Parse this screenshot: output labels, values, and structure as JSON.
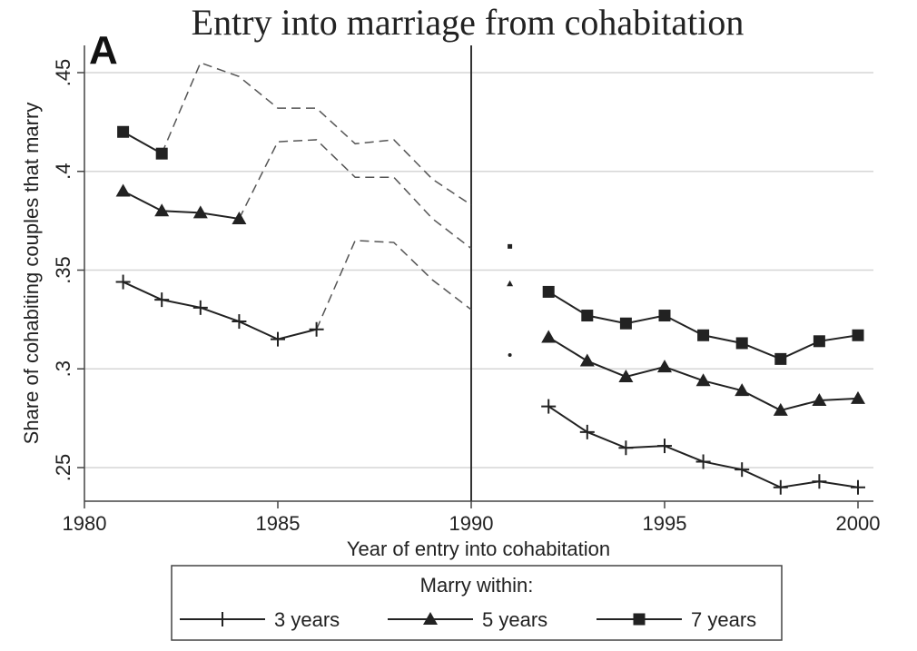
{
  "chart_data": {
    "type": "line",
    "title": "Entry into marriage from cohabitation",
    "panel_label": "A",
    "xlabel": "Year of entry into cohabitation",
    "ylabel": "Share of cohabiting couples that marry",
    "xlim": [
      1980,
      2000
    ],
    "ylim": [
      0.25,
      0.45
    ],
    "x_ticks": [
      1980,
      1985,
      1990,
      1995,
      2000
    ],
    "x_tick_labels": [
      "1980",
      "1985",
      "1990",
      "1995",
      "2000"
    ],
    "y_ticks": [
      0.25,
      0.3,
      0.35,
      0.4,
      0.45
    ],
    "y_tick_labels": [
      ".25",
      ".3",
      ".35",
      ".4",
      ".45"
    ],
    "grid": "horizontal",
    "vertical_line_at": 1990,
    "legend": {
      "title": "Marry within:",
      "placement": "bottom",
      "entries": [
        "3 years",
        "5 years",
        "7 years"
      ]
    },
    "series": [
      {
        "name": "3 years",
        "marker": "plus",
        "solid": [
          [
            [
              1981,
              0.344
            ],
            [
              1982,
              0.335
            ],
            [
              1983,
              0.331
            ],
            [
              1984,
              0.324
            ],
            [
              1985,
              0.315
            ],
            [
              1986,
              0.32
            ]
          ],
          [
            [
              1992,
              0.281
            ],
            [
              1993,
              0.268
            ],
            [
              1994,
              0.26
            ],
            [
              1995,
              0.261
            ],
            [
              1996,
              0.253
            ],
            [
              1997,
              0.249
            ],
            [
              1998,
              0.24
            ],
            [
              1999,
              0.243
            ],
            [
              2000,
              0.24
            ]
          ]
        ],
        "dashed": [
          [
            1986,
            0.32
          ],
          [
            1987,
            0.365
          ],
          [
            1988,
            0.364
          ],
          [
            1989,
            0.345
          ],
          [
            1990,
            0.33
          ]
        ],
        "dot": [
          1991,
          0.307
        ]
      },
      {
        "name": "5 years",
        "marker": "triangle",
        "solid": [
          [
            [
              1981,
              0.39
            ],
            [
              1982,
              0.38
            ],
            [
              1983,
              0.379
            ],
            [
              1984,
              0.376
            ]
          ],
          [
            [
              1992,
              0.316
            ],
            [
              1993,
              0.304
            ],
            [
              1994,
              0.296
            ],
            [
              1995,
              0.301
            ],
            [
              1996,
              0.294
            ],
            [
              1997,
              0.289
            ],
            [
              1998,
              0.279
            ],
            [
              1999,
              0.284
            ],
            [
              2000,
              0.285
            ]
          ]
        ],
        "dashed": [
          [
            1984,
            0.376
          ],
          [
            1985,
            0.415
          ],
          [
            1986,
            0.416
          ],
          [
            1987,
            0.397
          ],
          [
            1988,
            0.397
          ],
          [
            1989,
            0.376
          ],
          [
            1990,
            0.361
          ]
        ],
        "dot": [
          1991,
          0.343
        ]
      },
      {
        "name": "7 years",
        "marker": "square",
        "solid": [
          [
            [
              1981,
              0.42
            ],
            [
              1982,
              0.409
            ]
          ],
          [
            [
              1992,
              0.339
            ],
            [
              1993,
              0.327
            ],
            [
              1994,
              0.323
            ],
            [
              1995,
              0.327
            ],
            [
              1996,
              0.317
            ],
            [
              1997,
              0.313
            ],
            [
              1998,
              0.305
            ],
            [
              1999,
              0.314
            ],
            [
              2000,
              0.317
            ]
          ]
        ],
        "dashed": [
          [
            1982,
            0.409
          ],
          [
            1983,
            0.455
          ],
          [
            1984,
            0.448
          ],
          [
            1985,
            0.432
          ],
          [
            1986,
            0.432
          ],
          [
            1987,
            0.414
          ],
          [
            1988,
            0.416
          ],
          [
            1989,
            0.396
          ],
          [
            1990,
            0.383
          ]
        ],
        "dot": [
          1991,
          0.362
        ]
      }
    ]
  }
}
